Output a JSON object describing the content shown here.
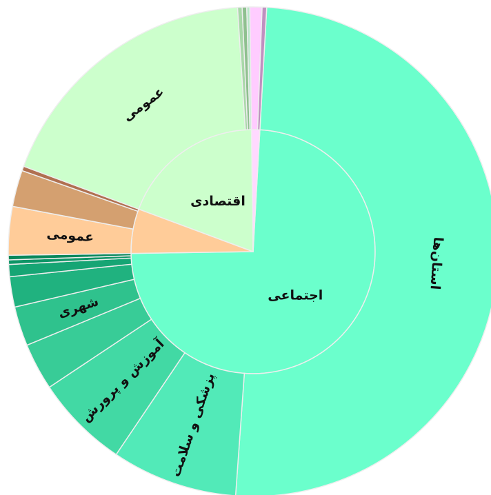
{
  "chart_data": {
    "type": "sunburst",
    "children": [
      {
        "name": "اجتماعی",
        "value": 73.8,
        "color": "#6bffcc",
        "children": [
          {
            "name": "استان‌ها",
            "value": 50.2,
            "color": "#6bffcc"
          },
          {
            "name": "پزشکی و سلامت",
            "value": 8.3,
            "color": "#52eab8"
          },
          {
            "name": "آموزش و پرورش",
            "value": 6.2,
            "color": "#42d9a4"
          },
          {
            "name": null,
            "value": 3.1,
            "color": "#38cc97"
          },
          {
            "name": "شهری",
            "value": 2.6,
            "color": "#2fc28d"
          },
          {
            "name": null,
            "value": 2.0,
            "color": "#20b27f"
          },
          {
            "name": null,
            "value": 0.8,
            "color": "#16a574"
          },
          {
            "name": null,
            "value": 0.3,
            "color": "#0e9566"
          },
          {
            "name": null,
            "value": 0.3,
            "color": "#08885b"
          }
        ]
      },
      {
        "name": null,
        "value": 5.9,
        "color": "#ffcc99",
        "children": [
          {
            "name": "عمومی",
            "value": 3.2,
            "color": "#ffcc99"
          },
          {
            "name": null,
            "value": 2.4,
            "color": "#d4a070"
          },
          {
            "name": null,
            "value": 0.3,
            "color": "#b07050"
          }
        ]
      },
      {
        "name": "اقتصادی",
        "value": 19.1,
        "color": "#ccffcc",
        "children": [
          {
            "name": "عمومی",
            "value": 18.3,
            "color": "#ccffcc"
          },
          {
            "name": null,
            "value": 0.3,
            "color": "#a8d8a8"
          },
          {
            "name": null,
            "value": 0.3,
            "color": "#8fc08f"
          },
          {
            "name": null,
            "value": 0.2,
            "color": "#b8e8c8"
          }
        ]
      },
      {
        "name": null,
        "value": 1.1,
        "color": "#ffd9ff",
        "children": [
          {
            "name": null,
            "value": 0.8,
            "color": "#ffccff"
          },
          {
            "name": null,
            "value": 0.3,
            "color": "#c090c0"
          }
        ]
      }
    ]
  }
}
